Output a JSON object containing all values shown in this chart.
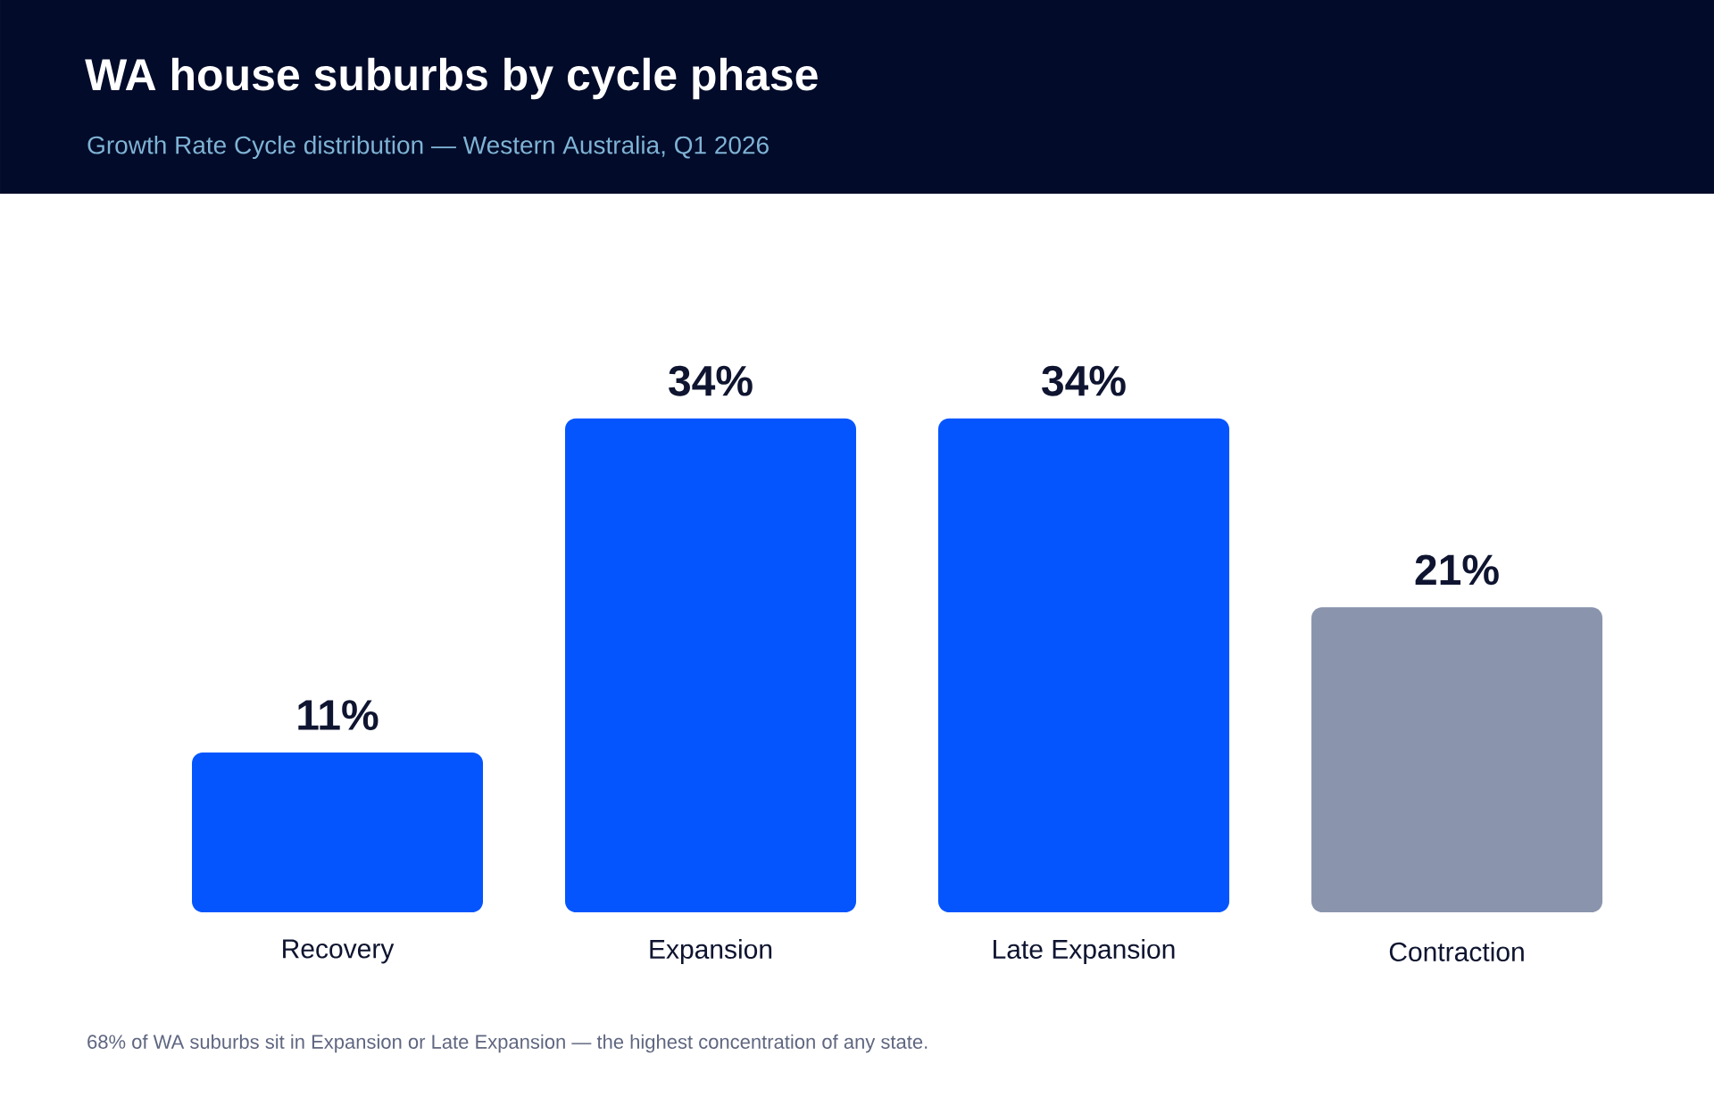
{
  "chart_data": {
    "type": "bar",
    "title": "WA house suburbs by cycle phase",
    "subtitle": "Growth Rate Cycle distribution — Western Australia, Q1 2026",
    "categories": [
      "Recovery",
      "Expansion",
      "Late Expansion",
      "Contraction"
    ],
    "values": [
      11,
      34,
      34,
      21
    ],
    "colors": [
      "#0455fe",
      "#0455fe",
      "#0455fe",
      "#8a95ad"
    ],
    "value_labels": [
      "11%",
      "34%",
      "34%",
      "21%"
    ],
    "annotations": [
      "68% of WA suburbs sit in Expansion or Late Expansion — the highest concentration of any state."
    ]
  }
}
